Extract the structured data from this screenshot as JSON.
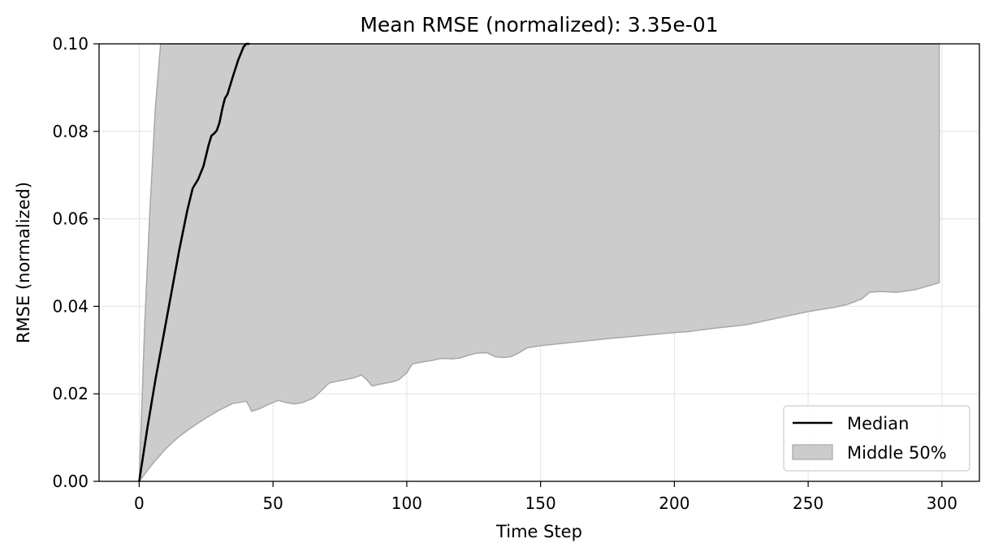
{
  "chart_data": {
    "type": "area",
    "title": "Mean RMSE (normalized): 3.35e-01",
    "xlabel": "Time Step",
    "ylabel": "RMSE (normalized)",
    "xlim": [
      -15,
      314
    ],
    "ylim": [
      0,
      0.1
    ],
    "xticks": [
      0,
      50,
      100,
      150,
      200,
      250,
      300
    ],
    "xtick_labels": [
      "0",
      "50",
      "100",
      "150",
      "200",
      "250",
      "300"
    ],
    "yticks": [
      0,
      0.02,
      0.04,
      0.06,
      0.08,
      0.1
    ],
    "ytick_labels": [
      "0.00",
      "0.02",
      "0.04",
      "0.06",
      "0.08",
      "0.10"
    ],
    "grid": true,
    "legend_position": "lower right",
    "series": [
      {
        "name": "Median",
        "kind": "line",
        "color": "#000000",
        "x": [
          0,
          3,
          6,
          9,
          12,
          15,
          18,
          20,
          22,
          24,
          26,
          27,
          28,
          29,
          30,
          31,
          32,
          33,
          35,
          37,
          39,
          40,
          41
        ],
        "y": [
          0,
          0.012,
          0.023,
          0.033,
          0.043,
          0.053,
          0.062,
          0.067,
          0.069,
          0.072,
          0.077,
          0.079,
          0.0795,
          0.0802,
          0.082,
          0.085,
          0.0875,
          0.0885,
          0.0925,
          0.0963,
          0.0993,
          0.1,
          0.1
        ]
      },
      {
        "name": "Middle 50%",
        "kind": "band",
        "fill": "#cccccc",
        "edge": "#a8a8a8",
        "upper": {
          "x": [
            0,
            2,
            4,
            6,
            8,
            10,
            11,
            299
          ],
          "y": [
            0,
            0.035,
            0.062,
            0.085,
            0.1,
            0.1,
            0.1,
            0.1
          ]
        },
        "lower": {
          "x": [
            0,
            5,
            10,
            15,
            20,
            25,
            30,
            35,
            40,
            41,
            42,
            45,
            48,
            50,
            52,
            55,
            58,
            61,
            65,
            68,
            71,
            75,
            80,
            83,
            85,
            87,
            90,
            95,
            97,
            100,
            102,
            105,
            110,
            113,
            117,
            120,
            123,
            126,
            130,
            133,
            136,
            139,
            142,
            145,
            150,
            175,
            200,
            205,
            215,
            227,
            240,
            250,
            260,
            265,
            270,
            273,
            277,
            283,
            290,
            299
          ],
          "y": [
            0,
            0.004,
            0.0075,
            0.0103,
            0.0125,
            0.0145,
            0.0163,
            0.0178,
            0.0183,
            0.0173,
            0.016,
            0.0166,
            0.0175,
            0.018,
            0.0185,
            0.018,
            0.0177,
            0.018,
            0.019,
            0.0207,
            0.0225,
            0.023,
            0.0236,
            0.0243,
            0.0233,
            0.0218,
            0.0222,
            0.0228,
            0.0232,
            0.0248,
            0.0268,
            0.0272,
            0.0277,
            0.0281,
            0.028,
            0.0282,
            0.0288,
            0.0293,
            0.0294,
            0.0285,
            0.0283,
            0.0285,
            0.0294,
            0.0305,
            0.031,
            0.0326,
            0.034,
            0.0342,
            0.035,
            0.0358,
            0.0375,
            0.0388,
            0.0398,
            0.0405,
            0.0417,
            0.0432,
            0.0434,
            0.0432,
            0.0438,
            0.0454
          ]
        }
      }
    ]
  }
}
